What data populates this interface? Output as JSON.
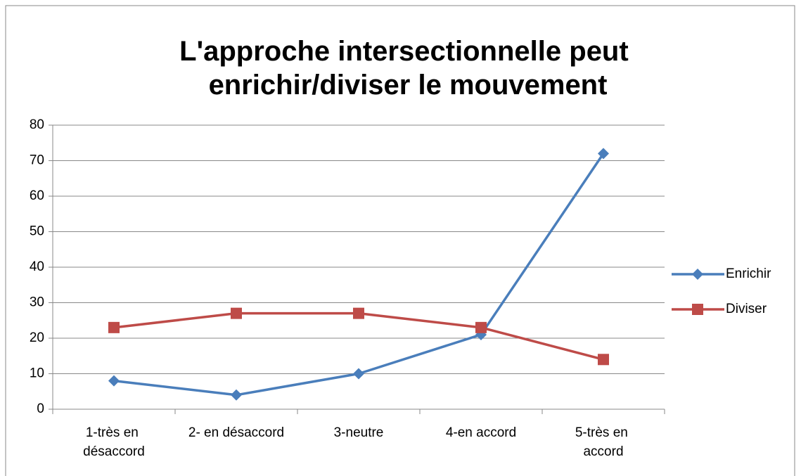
{
  "chart_data": {
    "type": "line",
    "title": "L'approche intersectionnelle peut enrichir/diviser le mouvement",
    "categories": [
      "1-très en désaccord",
      "2- en désaccord",
      "3-neutre",
      "4-en accord",
      "5-très en accord"
    ],
    "series": [
      {
        "name": "Enrichir",
        "color": "#4a7ebb",
        "marker": "diamond",
        "values": [
          8,
          4,
          10,
          21,
          72
        ]
      },
      {
        "name": "Diviser",
        "color": "#be4b48",
        "marker": "square",
        "values": [
          23,
          27,
          27,
          23,
          14
        ]
      }
    ],
    "ylim": [
      0,
      80
    ],
    "yticks": [
      0,
      10,
      20,
      30,
      40,
      50,
      60,
      70,
      80
    ],
    "grid": true,
    "legend": "right"
  }
}
